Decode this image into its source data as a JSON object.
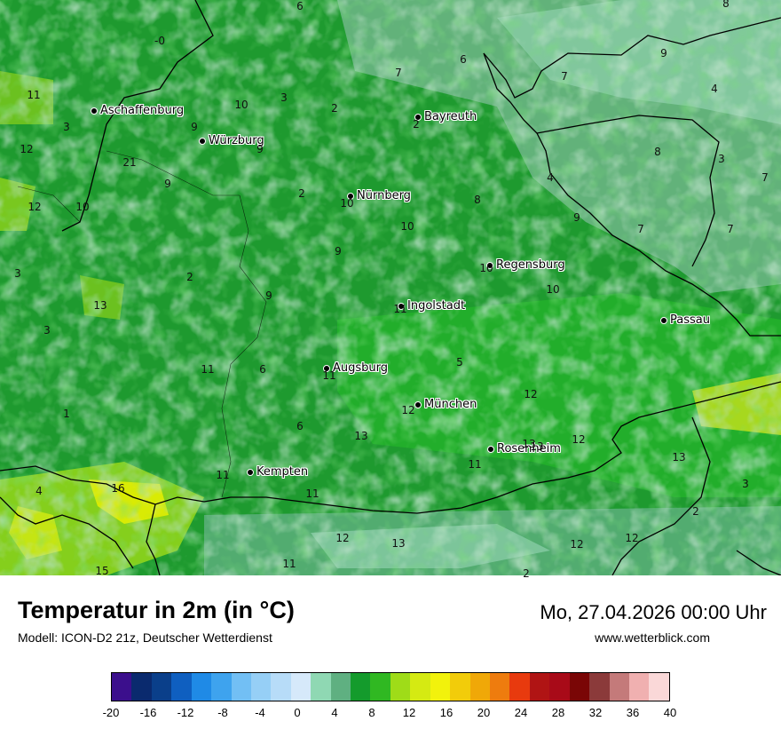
{
  "map": {
    "cities": [
      {
        "name": "Aschaffenburg"
      },
      {
        "name": "Würzburg"
      },
      {
        "name": "Bayreuth"
      },
      {
        "name": "Nürnberg"
      },
      {
        "name": "Regensburg"
      },
      {
        "name": "Ingolstadt"
      },
      {
        "name": "Passau"
      },
      {
        "name": "Augsburg"
      },
      {
        "name": "München"
      },
      {
        "name": "Rosenheim"
      },
      {
        "name": "Kempten"
      }
    ],
    "values": [
      "6",
      "8",
      "-0",
      "7",
      "6",
      "9",
      "11",
      "10",
      "3",
      "2",
      "7",
      "4",
      "3",
      "9",
      "9",
      "2",
      "12",
      "21",
      "8",
      "9",
      "12",
      "10",
      "2",
      "10",
      "8",
      "4",
      "7",
      "3",
      "9",
      "7",
      "7",
      "2",
      "3",
      "9",
      "10",
      "13",
      "3",
      "9",
      "10",
      "10",
      "11",
      "6",
      "11",
      "5",
      "1",
      "11",
      "6",
      "12",
      "13",
      "13",
      "12",
      "4",
      "16",
      "11",
      "11",
      "12",
      "13",
      "13",
      "3",
      "2",
      "15",
      "11",
      "12",
      "13",
      "12",
      "12",
      "11",
      "2"
    ],
    "colors": {
      "dark_green": "#1e9a2f",
      "mid_green": "#23b32a",
      "light_green": "#57c24a",
      "teal": "#7fbf93",
      "pale_teal": "#a6dbc0",
      "yellow_green": "#c9e21b",
      "yellow": "#e8f000",
      "border": "#000000"
    }
  },
  "header": {
    "title": "Temperatur in 2m (in °C)",
    "model": "Modell: ICON-D2 21z, Deutscher Wetterdienst",
    "datetime": "Mo, 27.04.2026 00:00 Uhr",
    "website": "www.wetterblick.com"
  },
  "legend": {
    "colors": [
      "#3b0f8c",
      "#0a2a6e",
      "#0a3f8a",
      "#0f5fc0",
      "#1f8ae6",
      "#3ea3ee",
      "#72bff4",
      "#96cff6",
      "#b7dcf8",
      "#d6e9fa",
      "#8fd8b3",
      "#5fb081",
      "#149b2c",
      "#30b822",
      "#9fdc18",
      "#d5ea12",
      "#f2f20c",
      "#f2cc0a",
      "#f0a808",
      "#ee7c0e",
      "#e83a0e",
      "#b01414",
      "#a80a18",
      "#7a0606",
      "#8b3a3a",
      "#c47a7a",
      "#f0b0b0",
      "#fad8d8"
    ],
    "ticks": [
      "-20",
      "-16",
      "-12",
      "-8",
      "-4",
      "0",
      "4",
      "8",
      "12",
      "16",
      "20",
      "24",
      "28",
      "32",
      "36",
      "40"
    ]
  }
}
